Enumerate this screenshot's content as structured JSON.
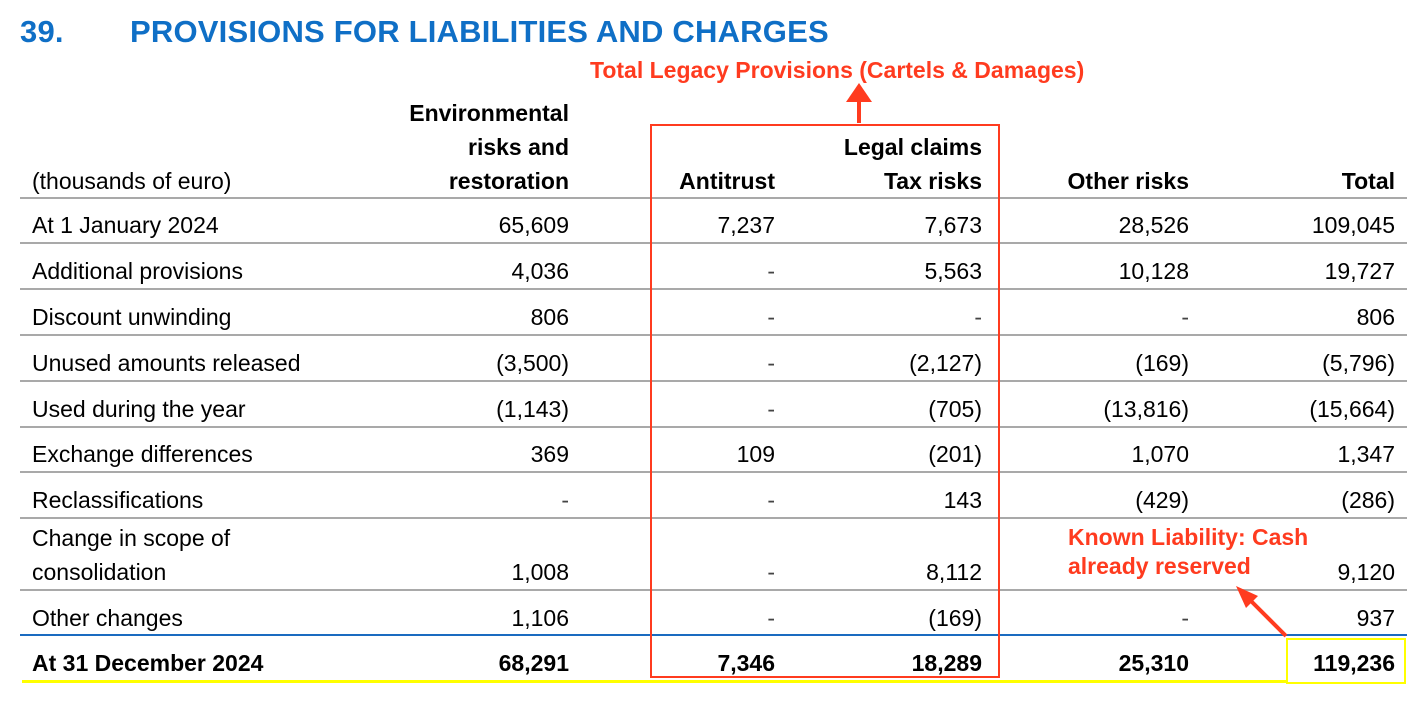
{
  "title": {
    "number": "39.",
    "text": "PROVISIONS FOR LIABILITIES AND CHARGES"
  },
  "annotations": {
    "top": "Total Legacy Provisions (Cartels & Damages)",
    "right_line1": "Known Liability: Cash",
    "right_line2": "already reserved"
  },
  "colors": {
    "title": "#0f6fc6",
    "annotation": "#ff3b1f",
    "highlight": "#ffff00"
  },
  "header": {
    "units": "(thousands of euro)",
    "env_line1": "Environmental",
    "env_line2": "risks and",
    "env_line3": "restoration",
    "legal_claims": "Legal claims",
    "antitrust": "Antitrust",
    "tax": "Tax risks",
    "other": "Other risks",
    "total": "Total"
  },
  "rows": [
    {
      "label": "At 1 January 2024",
      "env": "65,609",
      "antitrust": "7,237",
      "tax": "7,673",
      "other": "28,526",
      "total": "109,045"
    },
    {
      "label": "Additional provisions",
      "env": "4,036",
      "antitrust": "-",
      "tax": "5,563",
      "other": "10,128",
      "total": "19,727"
    },
    {
      "label": "Discount unwinding",
      "env": "806",
      "antitrust": "-",
      "tax": "-",
      "other": "-",
      "total": "806"
    },
    {
      "label": "Unused amounts released",
      "env": "(3,500)",
      "antitrust": "-",
      "tax": "(2,127)",
      "other": "(169)",
      "total": "(5,796)"
    },
    {
      "label": "Used during the year",
      "env": "(1,143)",
      "antitrust": "-",
      "tax": "(705)",
      "other": "(13,816)",
      "total": "(15,664)"
    },
    {
      "label": "Exchange differences",
      "env": "369",
      "antitrust": "109",
      "tax": "(201)",
      "other": "1,070",
      "total": "1,347"
    },
    {
      "label": "Reclassifications",
      "env": "-",
      "antitrust": "-",
      "tax": "143",
      "other": "(429)",
      "total": "(286)"
    },
    {
      "label_line1": "Change in scope of",
      "label_line2": "consolidation",
      "env": "1,008",
      "antitrust": "-",
      "tax": "8,112",
      "other": "",
      "total": "9,120"
    },
    {
      "label": "Other changes",
      "env": "1,106",
      "antitrust": "-",
      "tax": "(169)",
      "other": "-",
      "total": "937"
    }
  ],
  "closing": {
    "label": "At 31 December 2024",
    "env": "68,291",
    "antitrust": "7,346",
    "tax": "18,289",
    "other": "25,310",
    "total": "119,236"
  }
}
